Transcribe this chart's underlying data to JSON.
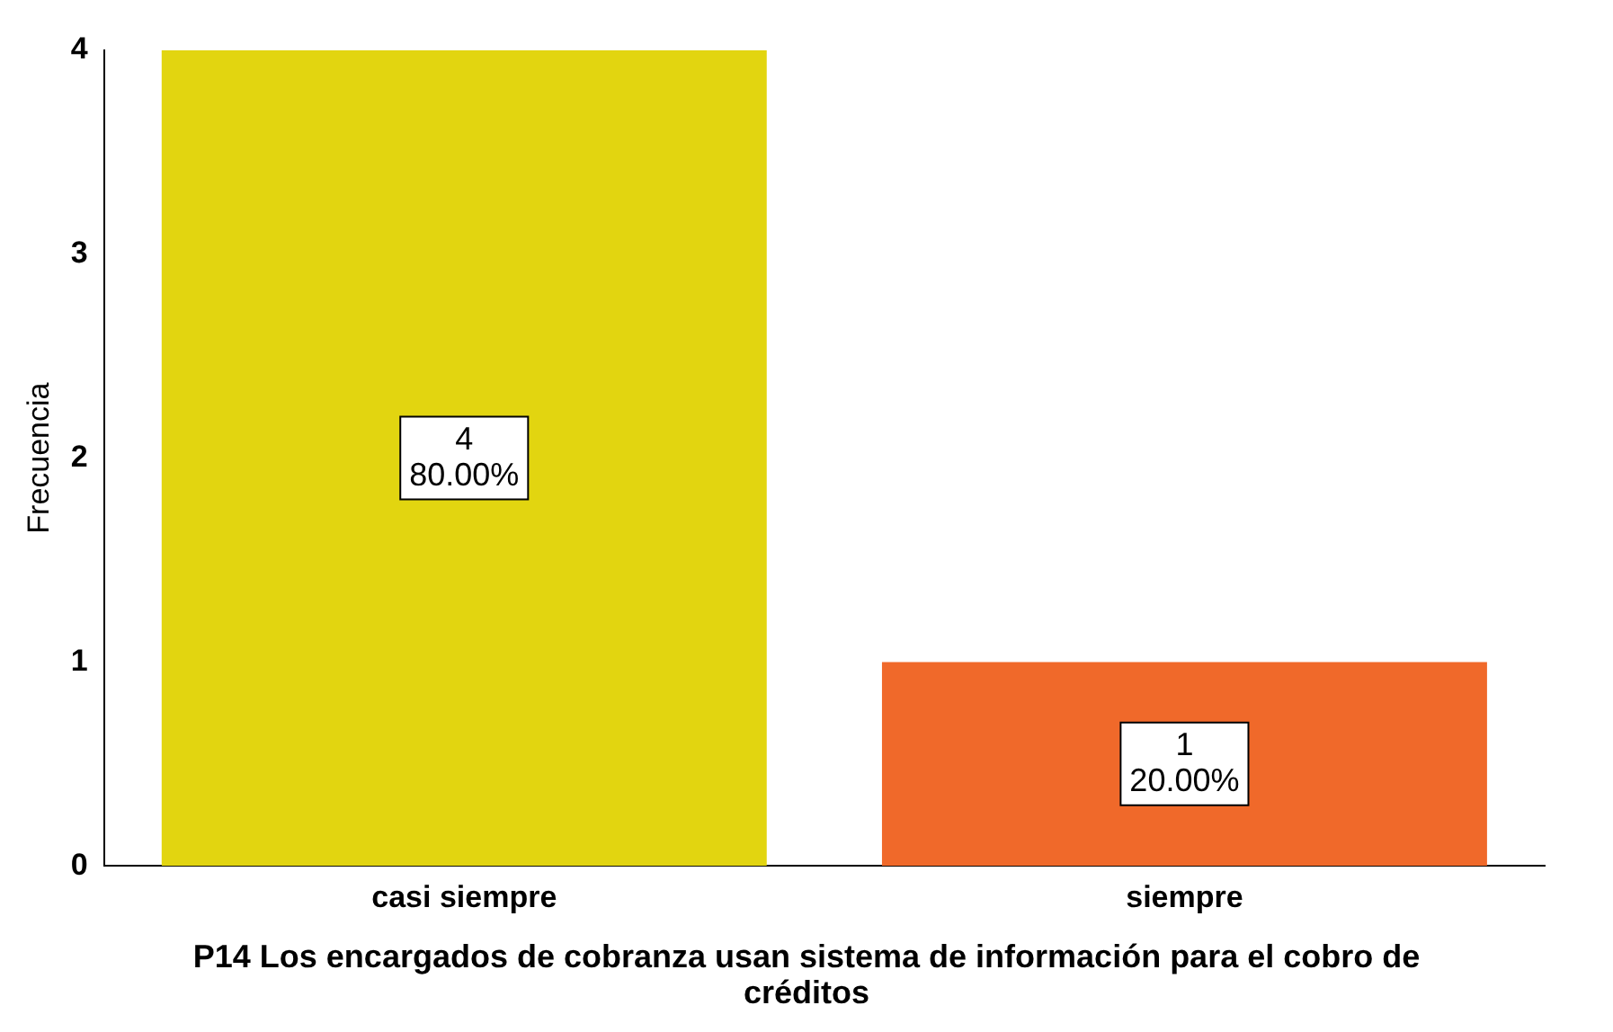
{
  "chart_data": {
    "type": "bar",
    "categories": [
      "casi siempre",
      "siempre"
    ],
    "values": [
      4,
      1
    ],
    "colors": [
      "#e2d510",
      "#f0692a"
    ],
    "value_labels": [
      "4\n80.00%",
      "1\n20.00%"
    ],
    "xlabel": "P14 Los encargados de cobranza usan sistema de información para el cobro de créditos",
    "ylabel": "Frecuencia",
    "ylim": [
      0,
      4
    ],
    "yticks": [
      0,
      1,
      2,
      3,
      4
    ],
    "grid": false,
    "legend": false
  }
}
